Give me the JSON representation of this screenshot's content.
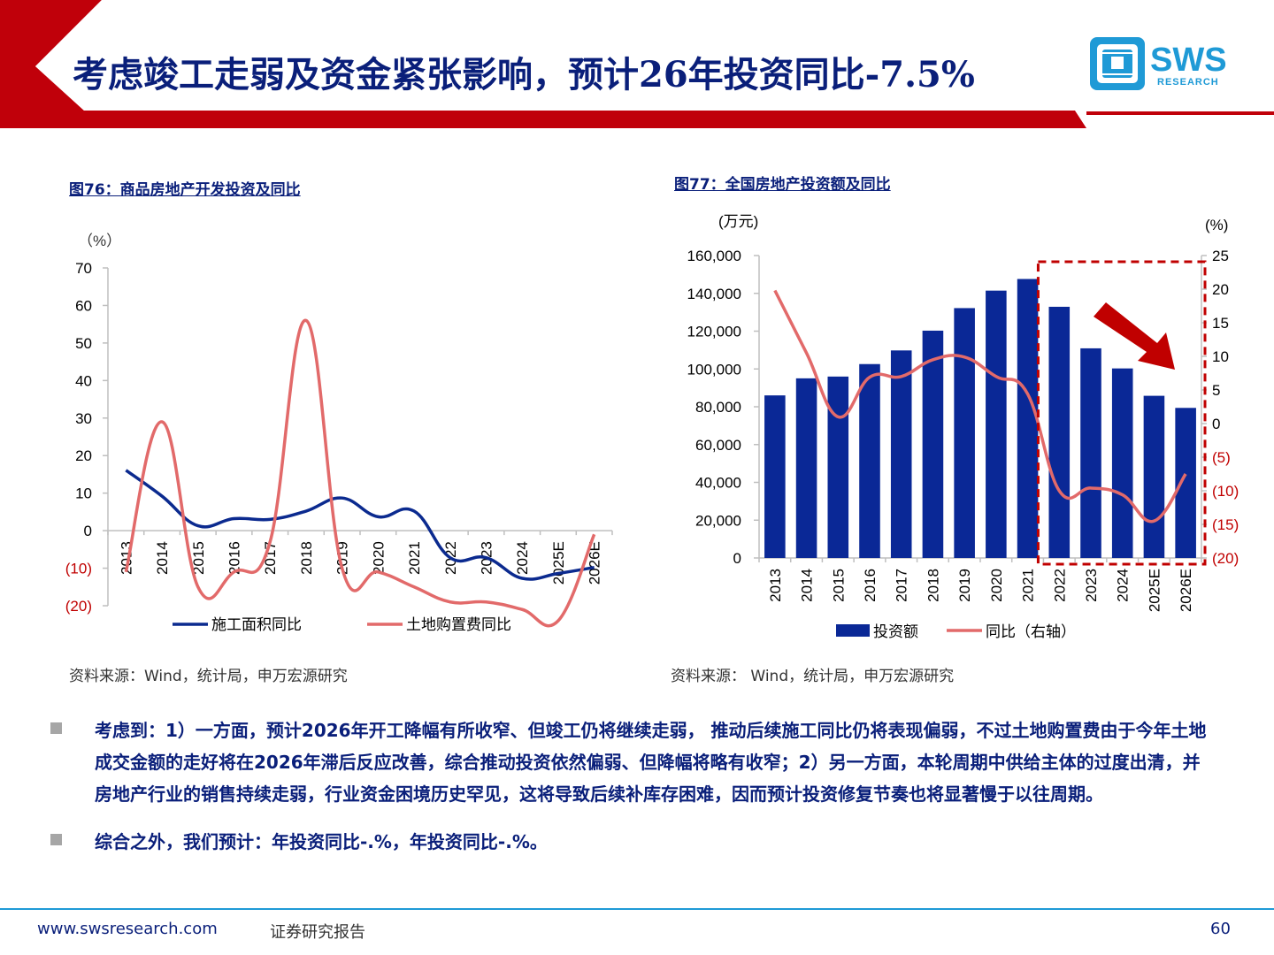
{
  "header": {
    "title": "考虑竣工走弱及资金紧张影响，预计26年投资同比-7.5%",
    "logo_text": "SWS",
    "logo_sub": "RESEARCH",
    "colors": {
      "red": "#c0000a",
      "navy": "#0a1f7a",
      "logo_blue": "#1f9ad6"
    }
  },
  "figures": {
    "fig76": {
      "title": "图76：商品房地产开发投资及同比",
      "source": "资料来源：Wind，统计局，申万宏源研究"
    },
    "fig77": {
      "title": "图77：全国房地产投资额及同比",
      "source": "资料来源： Wind，统计局，申万宏源研究"
    }
  },
  "chart_data": [
    {
      "type": "line",
      "ylabel": "（%）",
      "ylim": [
        -20,
        70
      ],
      "yticks": [
        70,
        60,
        50,
        40,
        30,
        20,
        10,
        0,
        -10,
        -20
      ],
      "ytick_labels": [
        "70",
        "60",
        "50",
        "40",
        "30",
        "20",
        "10",
        "0",
        "(10)",
        "(20)"
      ],
      "categories": [
        "2013",
        "2014",
        "2015",
        "2016",
        "2017",
        "2018",
        "2019",
        "2020",
        "2021",
        "2022",
        "2023",
        "2024",
        "2025E",
        "2026E"
      ],
      "series": [
        {
          "name": "施工面积同比",
          "color": "#0b2a8f",
          "values": [
            16.1,
            9.2,
            1.3,
            3.2,
            3.0,
            5.2,
            8.7,
            3.7,
            5.2,
            -7.2,
            -7.2,
            -12.7,
            -11.4,
            -9.8
          ]
        },
        {
          "name": "土地购置费同比",
          "color": "#e26a6a",
          "values": [
            -11,
            29,
            -15,
            -11,
            -3,
            56,
            -10,
            -11,
            -15,
            -19,
            -19,
            -21,
            -24,
            -1
          ]
        }
      ],
      "legend_position": "bottom"
    },
    {
      "type": "bar",
      "ylabel": "(万元)",
      "y2label": "(%)",
      "ylim": [
        0,
        160000
      ],
      "y2lim": [
        -20,
        25
      ],
      "yticks_labels": [
        "160,000",
        "140,000",
        "120,000",
        "100,000",
        "80,000",
        "60,000",
        "40,000",
        "20,000",
        "0"
      ],
      "y2ticks_labels": [
        "25",
        "20",
        "15",
        "10",
        "5",
        "0",
        "(5)",
        "(10)",
        "(15)",
        "(20)"
      ],
      "categories": [
        "2013",
        "2014",
        "2015",
        "2016",
        "2017",
        "2018",
        "2019",
        "2020",
        "2021",
        "2022",
        "2023",
        "2024",
        "2025E",
        "2026E"
      ],
      "series": [
        {
          "name": "投资额",
          "color": "#0a2896",
          "axis": "left",
          "values": [
            86013,
            95036,
            95979,
            102581,
            109799,
            120264,
            132194,
            141443,
            147602,
            132895,
            110913,
            100280,
            85800,
            79400
          ]
        },
        {
          "name": "同比（右轴）",
          "color": "#e26a6a",
          "axis": "right",
          "values": [
            19.8,
            10.5,
            1.0,
            6.9,
            7.0,
            9.5,
            9.9,
            7.0,
            4.4,
            -10.0,
            -9.6,
            -10.6,
            -14.5,
            -7.5
          ]
        }
      ],
      "legend_position": "bottom",
      "annotation": "dashed red box over 2022–2026E with down-right arrow"
    }
  ],
  "bullets": [
    "考虑到：1）一方面，预计2026年开工降幅有所收窄、但竣工仍将继续走弱， 推动后续施工同比仍将表现偏弱，不过土地购置费由于今年土地成交金额的走好将在2026年滞后反应改善，综合推动投资依然偏弱、但降幅将略有收窄；2）另一方面，本轮周期中供给主体的过度出清，并房地产行业的销售持续走弱，行业资金困境历史罕见，这将导致后续补库存困难，因而预计投资修复节奏也将显著慢于以往周期。",
    "综合之外，我们预计：年投资同比-.%，年投资同比-.%。"
  ],
  "footer": {
    "url": "www.swsresearch.com",
    "label": "证券研究报告",
    "page": "60"
  }
}
